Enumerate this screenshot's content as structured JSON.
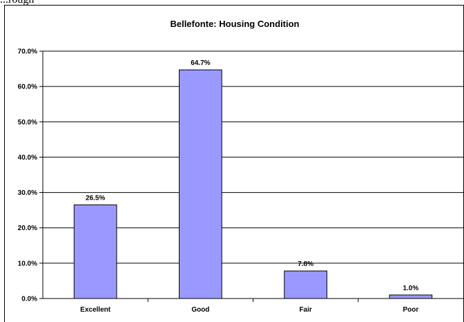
{
  "page": {
    "top_fragment": "...rough"
  },
  "chart_data": {
    "type": "bar",
    "title": "Bellefonte:  Housing Condition",
    "categories": [
      "Excellent",
      "Good",
      "Fair",
      "Poor"
    ],
    "values": [
      26.5,
      64.7,
      7.8,
      1.0
    ],
    "data_labels": [
      "26.5%",
      "64.7%",
      "7.8%",
      "1.0%"
    ],
    "xlabel": "",
    "ylabel": "",
    "ylim": [
      0,
      70
    ],
    "yticks": [
      0,
      10,
      20,
      30,
      40,
      50,
      60,
      70
    ],
    "ytick_labels": [
      "0.0%",
      "10.0%",
      "20.0%",
      "30.0%",
      "40.0%",
      "50.0%",
      "60.0%",
      "70.0%"
    ],
    "grid": true,
    "legend": "none",
    "colors": {
      "bar_fill": "#9999ff",
      "bar_stroke": "#000000",
      "grid": "#000000"
    }
  }
}
